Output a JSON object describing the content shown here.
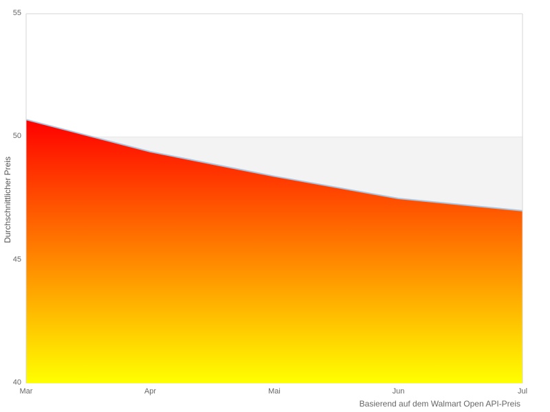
{
  "chart_data": {
    "type": "area",
    "x": [
      "Mar",
      "Apr",
      "Mai",
      "Jun",
      "Jul"
    ],
    "series": [
      {
        "name": "Durchschnittlicher Preis",
        "values": [
          50.7,
          49.4,
          48.4,
          47.5,
          47.0
        ]
      }
    ],
    "title": "",
    "xlabel": "",
    "ylabel": "Durchschnittlicher Preis",
    "caption": "Basierend auf dem Walmart Open API-Preis",
    "ylim": [
      40,
      55
    ],
    "yticks": [
      55,
      50,
      45,
      40
    ],
    "grid": "horizontal",
    "legend": "none",
    "bands": [
      {
        "from": 45,
        "to": 50,
        "color": "#f3f3f3"
      }
    ],
    "colors": {
      "area_gradient_top": "#ff0000",
      "area_gradient_bottom": "#ffff00",
      "line": "#a8c4de",
      "gridline": "#e6e6e6",
      "border": "#d6d6d6",
      "tick_text": "#666666",
      "axis_title_text": "#555555",
      "caption_text": "#666666",
      "plot_background": "#ffffff"
    }
  }
}
